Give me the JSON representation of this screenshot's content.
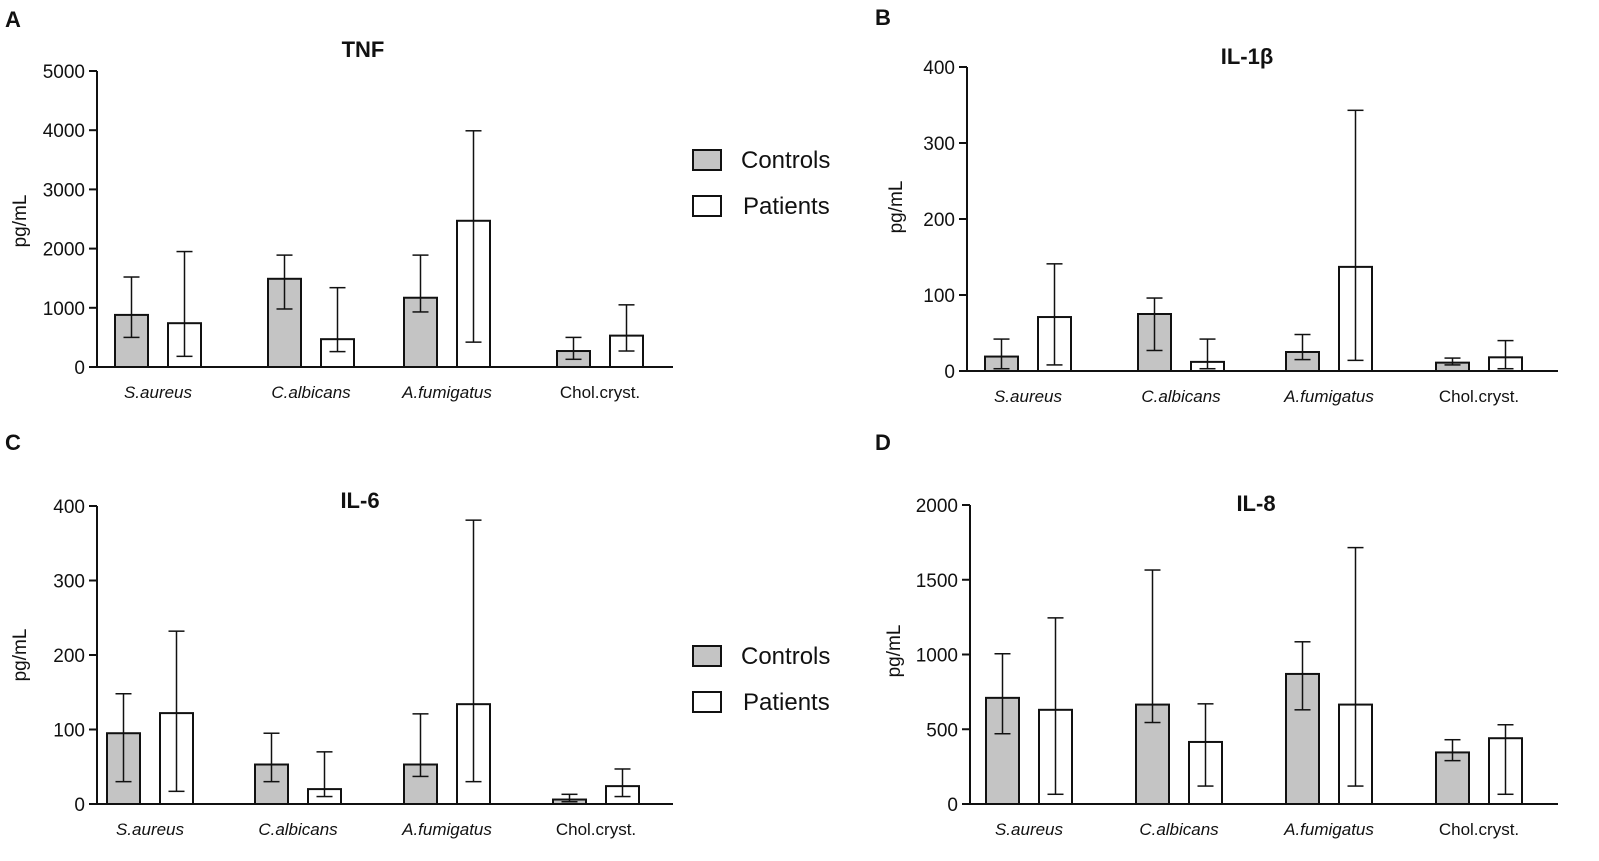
{
  "colors": {
    "controls_fill": "#c4c4c4",
    "patients_fill": "#ffffff",
    "stroke": "#111111"
  },
  "legend": {
    "controls": "Controls",
    "patients": "Patients"
  },
  "chart_data": [
    {
      "panel": "A",
      "type": "bar",
      "title": "TNF",
      "ylabel": "pg/mL",
      "xlabel": "",
      "ylim": [
        0,
        5000
      ],
      "yticks": [
        0,
        1000,
        2000,
        3000,
        4000,
        5000
      ],
      "categories": [
        "S.aureus",
        "C.albicans",
        "A.fumigatus",
        "Chol.cryst."
      ],
      "italic": [
        true,
        true,
        true,
        false
      ],
      "series": [
        {
          "name": "Controls",
          "values": [
            880,
            1490,
            1170,
            270
          ],
          "err_low": [
            500,
            980,
            930,
            130
          ],
          "err_high": [
            1520,
            1890,
            1890,
            500
          ]
        },
        {
          "name": "Patients",
          "values": [
            740,
            470,
            2470,
            530
          ],
          "err_low": [
            180,
            260,
            420,
            270
          ],
          "err_high": [
            1950,
            1340,
            3990,
            1050
          ]
        }
      ],
      "legend": true
    },
    {
      "panel": "B",
      "type": "bar",
      "title": "IL-1β",
      "ylabel": "pg/mL",
      "xlabel": "",
      "ylim": [
        0,
        400
      ],
      "yticks": [
        0,
        100,
        200,
        300,
        400
      ],
      "categories": [
        "S.aureus",
        "C.albicans",
        "A.fumigatus",
        "Chol.cryst."
      ],
      "italic": [
        true,
        true,
        true,
        false
      ],
      "series": [
        {
          "name": "Controls",
          "values": [
            19,
            75,
            25,
            11
          ],
          "err_low": [
            3,
            27,
            15,
            8
          ],
          "err_high": [
            42,
            96,
            48,
            17
          ]
        },
        {
          "name": "Patients",
          "values": [
            71,
            12,
            137,
            18
          ],
          "err_low": [
            8,
            3,
            14,
            3
          ],
          "err_high": [
            141,
            42,
            343,
            40
          ]
        }
      ],
      "legend": false
    },
    {
      "panel": "C",
      "type": "bar",
      "title": "IL-6",
      "ylabel": "pg/mL",
      "xlabel": "",
      "ylim": [
        0,
        400
      ],
      "yticks": [
        0,
        100,
        200,
        300,
        400
      ],
      "categories": [
        "S.aureus",
        "C.albicans",
        "A.fumigatus",
        "Chol.cryst."
      ],
      "italic": [
        true,
        true,
        true,
        false
      ],
      "series": [
        {
          "name": "Controls",
          "values": [
            95,
            53,
            53,
            6
          ],
          "err_low": [
            30,
            30,
            37,
            3
          ],
          "err_high": [
            148,
            95,
            121,
            13
          ]
        },
        {
          "name": "Patients",
          "values": [
            122,
            20,
            134,
            24
          ],
          "err_low": [
            17,
            10,
            30,
            10
          ],
          "err_high": [
            232,
            70,
            381,
            47
          ]
        }
      ],
      "legend": true
    },
    {
      "panel": "D",
      "type": "bar",
      "title": "IL-8",
      "ylabel": "pg/mL",
      "xlabel": "",
      "ylim": [
        0,
        2000
      ],
      "yticks": [
        0,
        500,
        1000,
        1500,
        2000
      ],
      "categories": [
        "S.aureus",
        "C.albicans",
        "A.fumigatus",
        "Chol.cryst."
      ],
      "italic": [
        true,
        true,
        true,
        false
      ],
      "series": [
        {
          "name": "Controls",
          "values": [
            710,
            665,
            870,
            345
          ],
          "err_low": [
            470,
            545,
            630,
            290
          ],
          "err_high": [
            1005,
            1565,
            1085,
            430
          ]
        },
        {
          "name": "Patients",
          "values": [
            630,
            415,
            665,
            440
          ],
          "err_low": [
            65,
            120,
            120,
            65
          ],
          "err_high": [
            1245,
            670,
            1715,
            530
          ]
        }
      ],
      "legend": false
    }
  ]
}
